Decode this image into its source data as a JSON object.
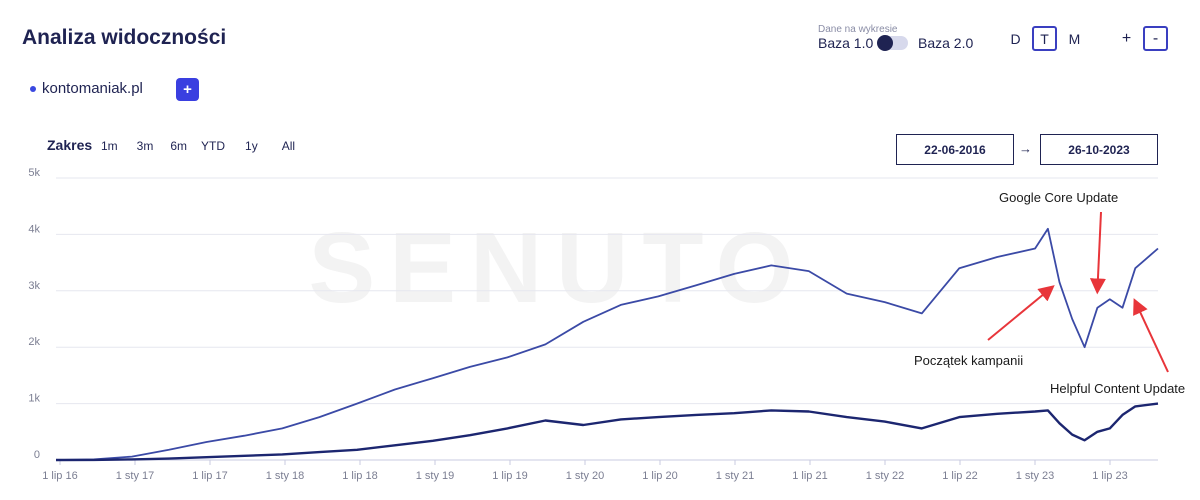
{
  "header": {
    "title": "Analiza widoczności",
    "data_source_label": "Dane na wykresie",
    "baza1": "Baza 1.0",
    "baza2": "Baza 2.0",
    "periods": [
      "D",
      "T",
      "M"
    ],
    "active_period": "T",
    "zoom_in": "+",
    "zoom_out": "-"
  },
  "domain": {
    "name": "kontomaniak.pl",
    "add_label": "+"
  },
  "range": {
    "label": "Zakres",
    "options": [
      "1m",
      "3m",
      "6m",
      "YTD",
      "1y",
      "All"
    ],
    "date_from": "22-06-2016",
    "arrow": "→",
    "date_to": "26-10-2023"
  },
  "colors": {
    "accent": "#3a3fe0",
    "line_top": "#3b4aa6",
    "line_bottom": "#1c2670",
    "arrow": "#e8353a",
    "watermark": "#f3f3f3"
  },
  "watermark": "SENUTO",
  "chart_data": {
    "type": "line",
    "x": [
      "2016-07-01",
      "2016-10-01",
      "2017-01-01",
      "2017-04-01",
      "2017-07-01",
      "2017-10-01",
      "2018-01-01",
      "2018-04-01",
      "2018-07-01",
      "2018-10-01",
      "2019-01-01",
      "2019-04-01",
      "2019-07-01",
      "2019-10-01",
      "2020-01-01",
      "2020-04-01",
      "2020-07-01",
      "2020-10-01",
      "2021-01-01",
      "2021-04-01",
      "2021-07-01",
      "2021-10-01",
      "2022-01-01",
      "2022-04-01",
      "2022-07-01",
      "2022-10-01",
      "2023-01-01",
      "2023-02-01",
      "2023-03-01",
      "2023-04-01",
      "2023-05-01",
      "2023-06-01",
      "2023-07-01",
      "2023-08-01",
      "2023-09-01",
      "2023-10-26"
    ],
    "series": [
      {
        "values": [
          0,
          10,
          60,
          180,
          320,
          430,
          560,
          760,
          1000,
          1250,
          1450,
          1650,
          1820,
          2050,
          2450,
          2750,
          2900,
          3100,
          3300,
          3450,
          3350,
          2950,
          2800,
          2600,
          3400,
          3600,
          3750,
          4100,
          3150,
          2500,
          2000,
          2700,
          2850,
          2700,
          3400,
          3750
        ]
      },
      {
        "values": [
          0,
          2,
          10,
          25,
          50,
          75,
          100,
          140,
          180,
          260,
          340,
          440,
          560,
          700,
          620,
          720,
          760,
          800,
          830,
          880,
          860,
          760,
          680,
          560,
          760,
          820,
          860,
          880,
          650,
          450,
          350,
          500,
          560,
          800,
          950,
          1000
        ]
      }
    ],
    "ylim": [
      0,
      5000
    ],
    "y_ticks": [
      0,
      1000,
      2000,
      3000,
      4000,
      5000
    ],
    "y_tick_labels": [
      "0",
      "1k",
      "2k",
      "3k",
      "4k",
      "5k"
    ],
    "x_tick_labels": [
      "1 lip 16",
      "1 sty 17",
      "1 lip 17",
      "1 sty 18",
      "1 lip 18",
      "1 sty 19",
      "1 lip 19",
      "1 sty 20",
      "1 lip 20",
      "1 sty 21",
      "1 lip 21",
      "1 sty 22",
      "1 lip 22",
      "1 sty 23",
      "1 lip 23"
    ],
    "grid": true,
    "annotations": [
      {
        "text": "Google Core Update",
        "date": "2023-06-01",
        "value": 2900
      },
      {
        "text": "Początek kampanii",
        "date": "2023-02-10",
        "value": 2950
      },
      {
        "text": "Helpful Content Update",
        "date": "2023-09-01",
        "value": 2700
      }
    ]
  }
}
